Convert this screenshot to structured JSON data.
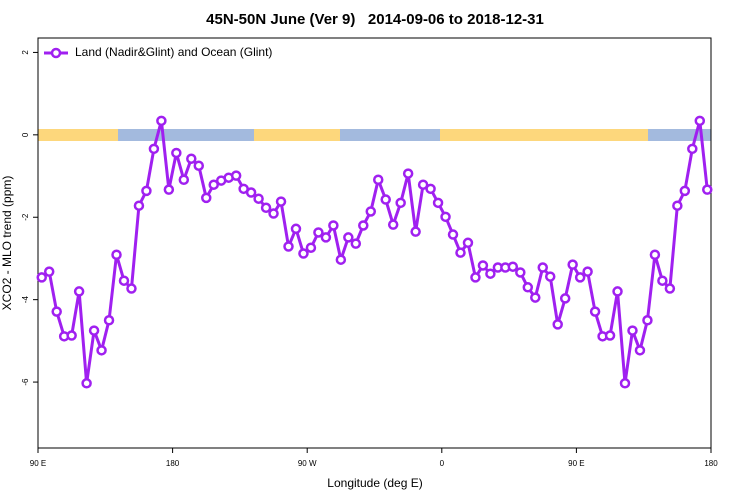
{
  "chart_data": {
    "type": "line",
    "title": "45N-50N June (Ver 9)   2014-09-06 to 2018-12-31",
    "xlabel": "Longitude (deg E)",
    "ylabel": "XCO2 - MLO trend (ppm)",
    "x": [
      92.5,
      97.5,
      102.5,
      107.5,
      112.5,
      117.5,
      122.5,
      127.5,
      132.5,
      137.5,
      142.5,
      147.5,
      152.5,
      157.5,
      162.5,
      167.5,
      172.5,
      177.5,
      182.5,
      187.5,
      192.5,
      197.5,
      202.5,
      207.5,
      212.5,
      217.5,
      222.5,
      227.5,
      232.5,
      237.5,
      242.5,
      247.5,
      252.5,
      257.5,
      262.5,
      267.5,
      272.5,
      277.5,
      282.5,
      287.5,
      292.5,
      297.5,
      302.5,
      307.5,
      312.5,
      317.5,
      322.5,
      327.5,
      332.5,
      337.5,
      342.5,
      347.5,
      352.5,
      357.5,
      362.5,
      367.5,
      372.5,
      377.5,
      382.5,
      387.5,
      392.5,
      397.5,
      402.5,
      407.5,
      412.5,
      417.5,
      422.5,
      427.5,
      432.5,
      437.5,
      442.5,
      447.5,
      452.5,
      457.5,
      462.5,
      467.5,
      472.5,
      477.5,
      482.5,
      487.5,
      492.5,
      497.5,
      502.5,
      507.5,
      512.5,
      517.5,
      522.5,
      527.5,
      532.5,
      537.5
    ],
    "series": [
      {
        "name": "Land (Nadir&Glint) and Ocean (Glint)",
        "color": "#a020f0",
        "values": [
          -3.46,
          -3.32,
          -4.29,
          -4.89,
          -4.87,
          -3.8,
          -6.03,
          -4.75,
          -5.23,
          -4.5,
          -2.91,
          -3.54,
          -3.73,
          -1.72,
          -1.36,
          -0.34,
          0.34,
          -1.33,
          -0.44,
          -1.09,
          -0.58,
          -0.75,
          -1.53,
          -1.21,
          -1.11,
          -1.04,
          -0.99,
          -1.31,
          -1.4,
          -1.55,
          -1.77,
          -1.91,
          -1.62,
          -2.71,
          -2.28,
          -2.88,
          -2.74,
          -2.37,
          -2.49,
          -2.2,
          -3.03,
          -2.49,
          -2.64,
          -2.2,
          -1.86,
          -1.09,
          -1.57,
          -2.18,
          -1.65,
          -0.94,
          -2.35,
          -1.21,
          -1.31,
          -1.65,
          -1.99,
          -2.42,
          -2.86,
          -2.62,
          -3.46,
          -3.17,
          -3.37,
          -3.22,
          -3.22,
          -3.2,
          -3.34,
          -3.7,
          -3.95,
          -3.22,
          -3.44,
          -4.6,
          -3.97,
          -3.15,
          -3.46,
          -3.32,
          -4.29,
          -4.89,
          -4.87,
          -3.8,
          -6.03,
          -4.75,
          -5.23,
          -4.5,
          -2.91,
          -3.54,
          -3.73,
          -1.72,
          -1.36,
          -0.34,
          0.34,
          -1.33
        ]
      }
    ],
    "xlim": [
      90,
      540
    ],
    "xticks": [
      {
        "value": 90,
        "label": "90 E"
      },
      180,
      {
        "value": 270,
        "label": "90 W"
      },
      {
        "value": 360,
        "label": "0"
      },
      {
        "value": 450,
        "label": "90 E"
      },
      {
        "value": 540,
        "label": "180"
      }
    ],
    "ylim": [
      -7.6,
      2.35
    ],
    "yticks": [
      -6,
      -4,
      -2,
      0,
      2
    ],
    "legend": "top-left"
  }
}
